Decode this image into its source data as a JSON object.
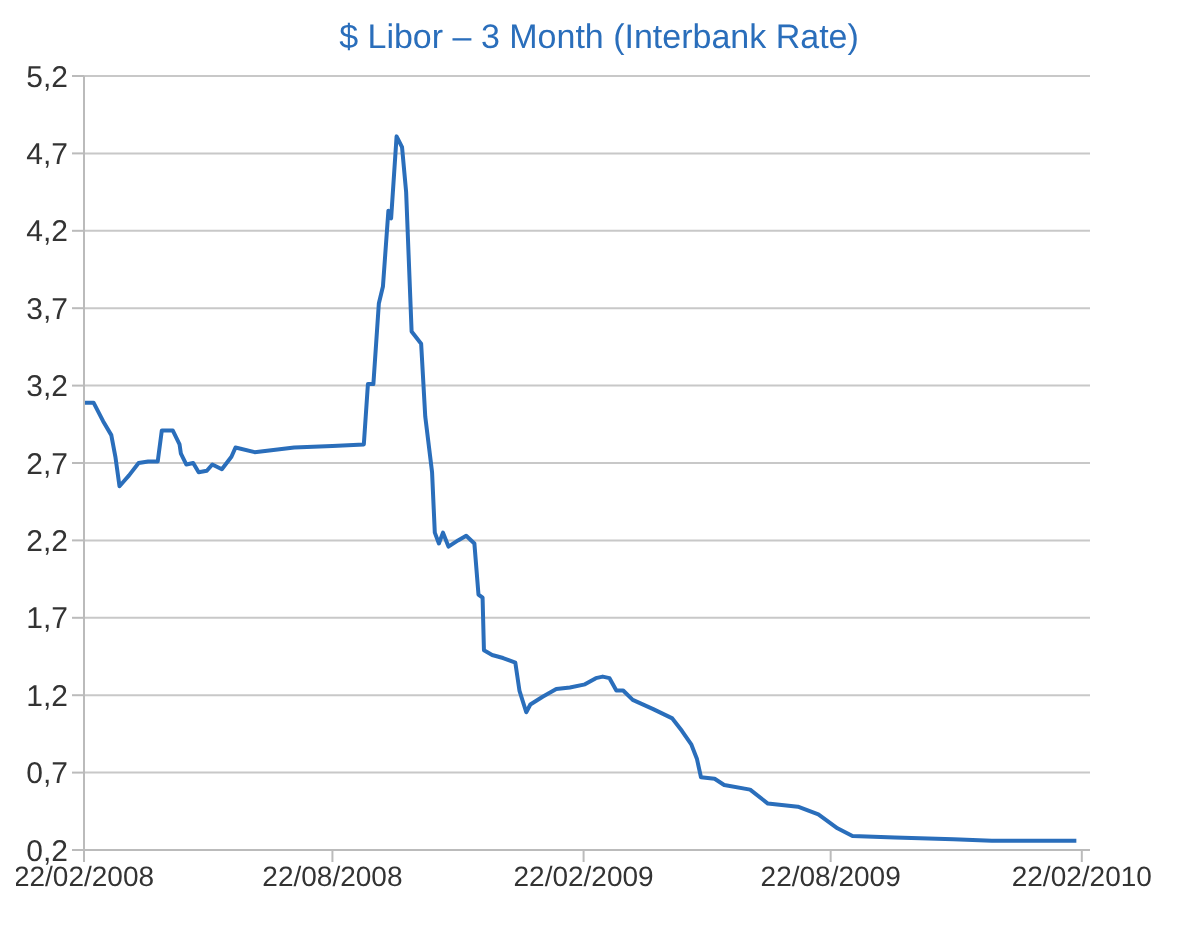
{
  "chart_data": {
    "type": "line",
    "title": "$ Libor – 3 Month (Interbank Rate)",
    "x": [
      "2008-02-22",
      "2008-02-29",
      "2008-03-07",
      "2008-03-13",
      "2008-03-16",
      "2008-03-19",
      "2008-03-23",
      "2008-03-26",
      "2008-04-02",
      "2008-04-09",
      "2008-04-16",
      "2008-04-19",
      "2008-04-27",
      "2008-05-02",
      "2008-05-03",
      "2008-05-07",
      "2008-05-12",
      "2008-05-16",
      "2008-05-22",
      "2008-05-26",
      "2008-06-02",
      "2008-06-09",
      "2008-06-12",
      "2008-06-26",
      "2008-07-25",
      "2008-08-22",
      "2008-09-14",
      "2008-09-17",
      "2008-09-21",
      "2008-09-25",
      "2008-09-28",
      "2008-10-02",
      "2008-10-04",
      "2008-10-08",
      "2008-10-12",
      "2008-10-15",
      "2008-10-19",
      "2008-10-26",
      "2008-10-29",
      "2008-11-03",
      "2008-11-05",
      "2008-11-08",
      "2008-11-11",
      "2008-11-15",
      "2008-11-22",
      "2008-11-28",
      "2008-12-04",
      "2008-12-07",
      "2008-12-10",
      "2008-12-11",
      "2008-12-17",
      "2008-12-25",
      "2009-01-03",
      "2009-01-06",
      "2009-01-11",
      "2009-01-14",
      "2009-01-23",
      "2009-02-02",
      "2009-02-12",
      "2009-02-23",
      "2009-03-03",
      "2009-03-08",
      "2009-03-13",
      "2009-03-18",
      "2009-03-23",
      "2009-03-30",
      "2009-04-14",
      "2009-04-28",
      "2009-05-05",
      "2009-05-12",
      "2009-05-16",
      "2009-05-19",
      "2009-05-29",
      "2009-06-05",
      "2009-06-24",
      "2009-07-07",
      "2009-07-29",
      "2009-08-13",
      "2009-08-27",
      "2009-09-07",
      "2009-10-08",
      "2009-11-20",
      "2009-12-18",
      "2010-02-18"
    ],
    "series": [
      {
        "color": "#2a6ebb",
        "values": [
          3.09,
          3.09,
          2.97,
          2.88,
          2.74,
          2.55,
          2.59,
          2.62,
          2.7,
          2.71,
          2.71,
          2.91,
          2.91,
          2.82,
          2.76,
          2.69,
          2.7,
          2.64,
          2.65,
          2.69,
          2.66,
          2.74,
          2.8,
          2.77,
          2.8,
          2.81,
          2.82,
          3.21,
          3.21,
          3.73,
          3.84,
          4.33,
          4.28,
          4.81,
          4.74,
          4.45,
          3.55,
          3.47,
          3.0,
          2.64,
          2.25,
          2.18,
          2.25,
          2.16,
          2.2,
          2.23,
          2.18,
          1.85,
          1.83,
          1.49,
          1.46,
          1.44,
          1.41,
          1.23,
          1.09,
          1.14,
          1.19,
          1.24,
          1.25,
          1.27,
          1.31,
          1.32,
          1.31,
          1.23,
          1.23,
          1.17,
          1.11,
          1.05,
          0.97,
          0.88,
          0.79,
          0.67,
          0.66,
          0.62,
          0.59,
          0.5,
          0.48,
          0.43,
          0.34,
          0.29,
          0.28,
          0.27,
          0.26,
          0.26
        ]
      }
    ],
    "xlim": [
      "2008-02-22",
      "2010-02-28"
    ],
    "xticks": [
      {
        "value": "2008-02-22",
        "label": "22/02/2008"
      },
      {
        "value": "2008-08-22",
        "label": "22/08/2008"
      },
      {
        "value": "2009-02-22",
        "label": "22/02/2009"
      },
      {
        "value": "2009-08-22",
        "label": "22/08/2009"
      },
      {
        "value": "2010-02-22",
        "label": "22/02/2010"
      }
    ],
    "ylim": [
      0.2,
      5.2
    ],
    "yticks": [
      {
        "value": 0.2,
        "label": "0,2"
      },
      {
        "value": 0.7,
        "label": "0,7"
      },
      {
        "value": 1.2,
        "label": "1,2"
      },
      {
        "value": 1.7,
        "label": "1,7"
      },
      {
        "value": 2.2,
        "label": "2,2"
      },
      {
        "value": 2.7,
        "label": "2,7"
      },
      {
        "value": 3.2,
        "label": "3,2"
      },
      {
        "value": 3.7,
        "label": "3,7"
      },
      {
        "value": 4.2,
        "label": "4,2"
      },
      {
        "value": 4.7,
        "label": "4,7"
      },
      {
        "value": 5.2,
        "label": "5,2"
      }
    ],
    "grid": "y",
    "marker": "none",
    "line_style": "solid"
  }
}
